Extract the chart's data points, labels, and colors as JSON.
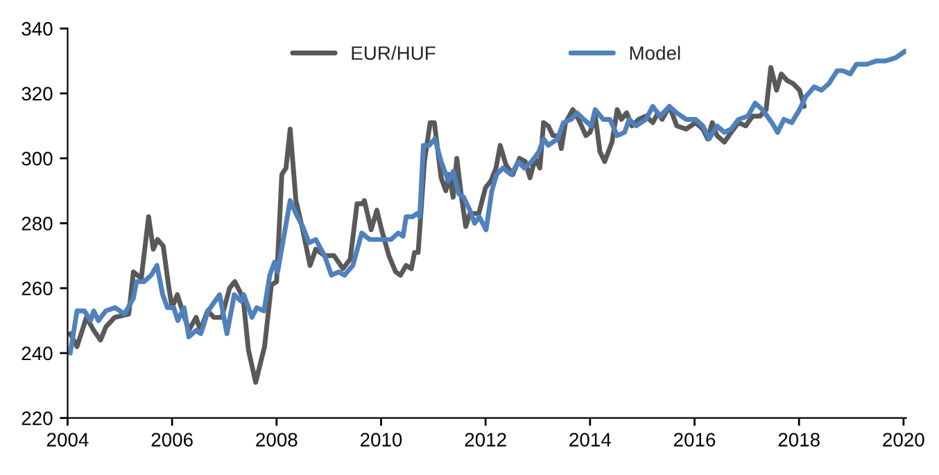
{
  "chart_data": {
    "type": "line",
    "xlim": [
      2004,
      2020.05
    ],
    "xticks": [
      2004,
      2006,
      2008,
      2010,
      2012,
      2014,
      2016,
      2018,
      2020
    ],
    "ylim": [
      220,
      340
    ],
    "yticks": [
      220,
      240,
      260,
      280,
      300,
      320,
      340
    ],
    "grid": false,
    "legend": "top",
    "line_style": "solid",
    "marker": "none",
    "series": [
      {
        "name": "EUR/HUF",
        "color": "#595959",
        "x": [
          2004.05,
          2004.18,
          2004.36,
          2004.5,
          2004.63,
          2004.73,
          2004.9,
          2005.17,
          2005.26,
          2005.41,
          2005.55,
          2005.64,
          2005.72,
          2005.83,
          2005.93,
          2006.0,
          2006.1,
          2006.2,
          2006.32,
          2006.46,
          2006.54,
          2006.68,
          2006.8,
          2006.95,
          2007.1,
          2007.2,
          2007.36,
          2007.46,
          2007.6,
          2007.77,
          2007.9,
          2008.0,
          2008.1,
          2008.18,
          2008.26,
          2008.37,
          2008.5,
          2008.64,
          2008.75,
          2008.92,
          2009.1,
          2009.27,
          2009.41,
          2009.54,
          2009.65,
          2009.68,
          2009.81,
          2009.92,
          2010.01,
          2010.15,
          2010.28,
          2010.37,
          2010.48,
          2010.58,
          2010.64,
          2010.71,
          2010.83,
          2010.94,
          2011.02,
          2011.15,
          2011.24,
          2011.3,
          2011.38,
          2011.45,
          2011.54,
          2011.62,
          2011.7,
          2011.87,
          2012.0,
          2012.1,
          2012.2,
          2012.28,
          2012.39,
          2012.52,
          2012.65,
          2012.76,
          2012.85,
          2012.95,
          2013.04,
          2013.11,
          2013.2,
          2013.29,
          2013.4,
          2013.45,
          2013.53,
          2013.67,
          2013.78,
          2013.92,
          2014.0,
          2014.1,
          2014.19,
          2014.28,
          2014.42,
          2014.52,
          2014.6,
          2014.7,
          2014.8,
          2014.93,
          2015.07,
          2015.2,
          2015.3,
          2015.38,
          2015.52,
          2015.66,
          2015.84,
          2016.02,
          2016.16,
          2016.25,
          2016.34,
          2016.43,
          2016.57,
          2016.7,
          2016.84,
          2016.98,
          2017.11,
          2017.25,
          2017.37,
          2017.46,
          2017.57,
          2017.66,
          2017.77,
          2017.89,
          2018.01,
          2018.1
        ],
        "values": [
          246,
          242,
          251,
          247,
          244,
          248,
          251,
          252,
          265,
          263,
          282,
          272,
          275,
          273,
          261,
          254,
          258,
          253,
          247,
          251,
          247,
          253,
          251,
          251,
          260,
          262,
          257,
          241,
          231,
          242,
          261,
          262,
          295,
          297,
          309,
          287,
          278,
          267,
          272,
          270,
          270,
          266,
          269,
          286,
          286,
          287,
          278,
          284,
          278,
          270,
          265,
          264,
          267,
          266,
          271,
          271,
          299,
          311,
          311,
          294,
          290,
          295,
          288,
          300,
          288,
          279,
          283,
          283,
          291,
          293,
          297,
          304,
          298,
          295,
          300,
          299,
          294,
          300,
          297,
          311,
          310,
          307,
          307,
          303,
          311,
          315,
          312,
          307,
          308,
          313,
          302,
          299,
          305,
          315,
          312,
          314,
          310,
          312,
          313,
          311,
          314,
          312,
          316,
          310,
          309,
          311,
          309,
          306,
          311,
          307,
          305,
          308,
          311,
          310,
          313,
          313,
          315,
          328,
          321,
          326,
          324,
          323,
          321,
          316
        ]
      },
      {
        "name": "Model",
        "color": "#4f81bd",
        "x": [
          2004.05,
          2004.18,
          2004.32,
          2004.44,
          2004.5,
          2004.59,
          2004.73,
          2004.91,
          2005.09,
          2005.26,
          2005.32,
          2005.46,
          2005.6,
          2005.71,
          2005.82,
          2005.91,
          2006.03,
          2006.11,
          2006.23,
          2006.32,
          2006.46,
          2006.55,
          2006.69,
          2006.82,
          2006.91,
          2007.05,
          2007.19,
          2007.32,
          2007.37,
          2007.53,
          2007.62,
          2007.76,
          2007.87,
          2007.96,
          2008.02,
          2008.14,
          2008.26,
          2008.37,
          2008.5,
          2008.62,
          2008.75,
          2008.92,
          2009.05,
          2009.19,
          2009.3,
          2009.46,
          2009.63,
          2009.78,
          2009.92,
          2010.01,
          2010.1,
          2010.19,
          2010.33,
          2010.42,
          2010.48,
          2010.6,
          2010.69,
          2010.74,
          2010.81,
          2010.92,
          2011.03,
          2011.15,
          2011.29,
          2011.38,
          2011.49,
          2011.58,
          2011.7,
          2011.79,
          2011.88,
          2012.01,
          2012.12,
          2012.21,
          2012.33,
          2012.49,
          2012.63,
          2012.74,
          2012.88,
          2013.02,
          2013.11,
          2013.2,
          2013.38,
          2013.49,
          2013.64,
          2013.75,
          2013.88,
          2014.02,
          2014.1,
          2014.25,
          2014.38,
          2014.52,
          2014.66,
          2014.75,
          2014.88,
          2015.07,
          2015.2,
          2015.34,
          2015.52,
          2015.66,
          2015.84,
          2016.02,
          2016.16,
          2016.28,
          2016.43,
          2016.57,
          2016.7,
          2016.84,
          2017.02,
          2017.16,
          2017.3,
          2017.48,
          2017.59,
          2017.71,
          2017.86,
          2018.01,
          2018.13,
          2018.29,
          2018.43,
          2018.57,
          2018.73,
          2018.84,
          2018.98,
          2019.1,
          2019.3,
          2019.48,
          2019.66,
          2019.85,
          2020.03
        ],
        "values": [
          240,
          253,
          253,
          250,
          253,
          250,
          253,
          254,
          252,
          257,
          262,
          262,
          264,
          267,
          258,
          254,
          254,
          250,
          254,
          245,
          247,
          246,
          253,
          256,
          258,
          246,
          258,
          256,
          258,
          251,
          254,
          253,
          264,
          268,
          265,
          276,
          287,
          283,
          279,
          274,
          275,
          270,
          264,
          265,
          264,
          267,
          277,
          275,
          275,
          275,
          275,
          275,
          277,
          276,
          282,
          282,
          283,
          282,
          304,
          304,
          306,
          299,
          293,
          296,
          289,
          288,
          284,
          280,
          282,
          278,
          290,
          295,
          297,
          295,
          299,
          297,
          299,
          302,
          306,
          304,
          306,
          311,
          312,
          314,
          312,
          310,
          315,
          312,
          312,
          307,
          308,
          312,
          310,
          312,
          316,
          313,
          316,
          314,
          312,
          312,
          310,
          306,
          310,
          308,
          309,
          312,
          313,
          317,
          315,
          311,
          308,
          312,
          311,
          315,
          319,
          322,
          321,
          323,
          327,
          327,
          326,
          329,
          329,
          330,
          330,
          331,
          333
        ]
      }
    ]
  }
}
